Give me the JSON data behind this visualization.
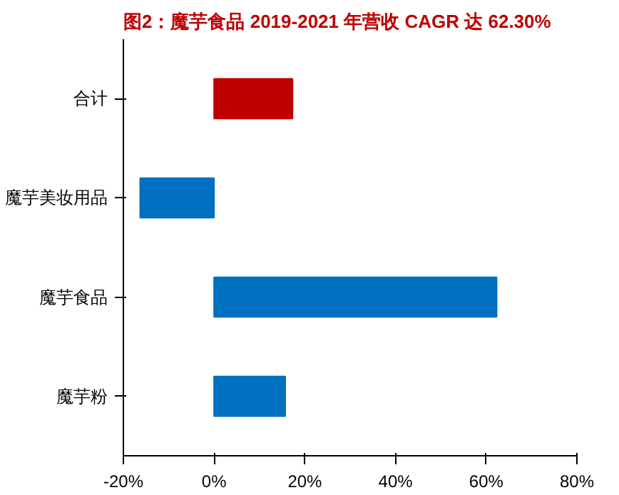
{
  "chart_data": {
    "type": "bar",
    "orientation": "horizontal",
    "title": "图2：魔芋食品 2019-2021 年营收 CAGR 达 62.30%",
    "categories": [
      "合计",
      "魔芋美妆用品",
      "魔芋食品",
      "魔芋粉"
    ],
    "values": [
      17.3,
      -16.3,
      62.3,
      15.7
    ],
    "colors": [
      "#c00000",
      "#0070c0",
      "#0070c0",
      "#0070c0"
    ],
    "xlim": [
      -20,
      80
    ],
    "xticks": [
      {
        "value": -20,
        "label": "-20%"
      },
      {
        "value": 0,
        "label": "0%"
      },
      {
        "value": 20,
        "label": "20%"
      },
      {
        "value": 40,
        "label": "40%"
      },
      {
        "value": 60,
        "label": "60%"
      },
      {
        "value": 80,
        "label": "80%"
      }
    ],
    "grid": false
  }
}
